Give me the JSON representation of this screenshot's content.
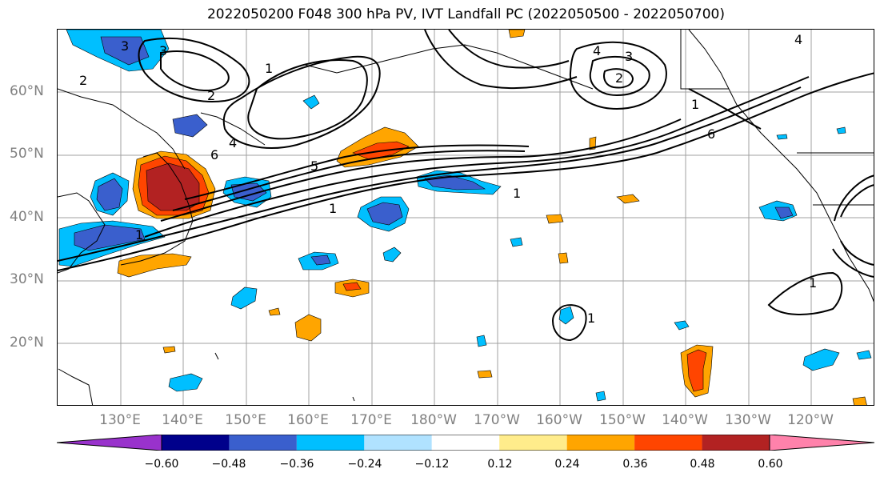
{
  "title": "2022050200 F048 300 hPa PV, IVT Landfall PC (2022050500 - 2022050700)",
  "lat_labels": [
    "60°N",
    "50°N",
    "40°N",
    "30°N",
    "20°N"
  ],
  "lon_labels": [
    "130°E",
    "140°E",
    "150°E",
    "160°E",
    "170°E",
    "180°W",
    "170°W",
    "160°W",
    "150°W",
    "140°W",
    "130°W",
    "120°W"
  ],
  "colorbar": {
    "colors": [
      "#9932CC",
      "#00008B",
      "#3A5FCD",
      "#00BFFF",
      "#B0E2FF",
      "#FFFFFF",
      "#FFEC8B",
      "#FFA500",
      "#FF4500",
      "#B22222",
      "#FF82AB"
    ],
    "tick_labels": [
      "−0.60",
      "−0.48",
      "−0.36",
      "−0.24",
      "−0.12",
      "0.12",
      "0.24",
      "0.36",
      "0.48",
      "0.60"
    ]
  },
  "contour_labels": [
    "3",
    "2",
    "1",
    "4",
    "5",
    "6",
    "1",
    "2",
    "3",
    "4",
    "1",
    "6",
    "1",
    "1",
    "2",
    "1",
    "3",
    "4",
    "1"
  ]
}
